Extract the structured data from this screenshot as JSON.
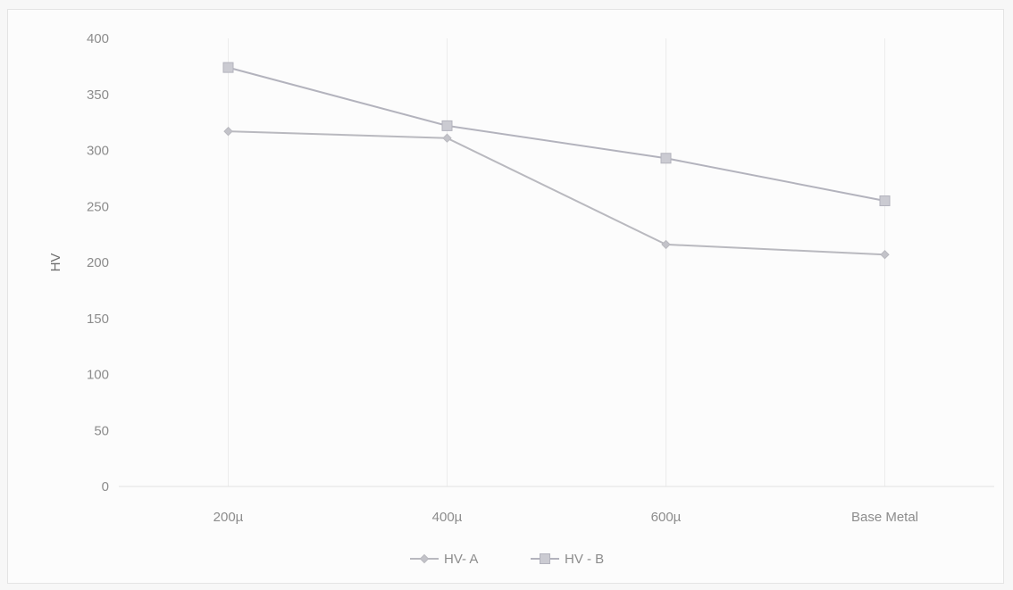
{
  "chart_data": {
    "type": "line",
    "title": "",
    "xlabel": "",
    "ylabel": "HV",
    "categories": [
      "200µ",
      "400µ",
      "600µ",
      "Base Metal"
    ],
    "ylim": [
      0,
      400
    ],
    "yticks": [
      0,
      50,
      100,
      150,
      200,
      250,
      300,
      350,
      400
    ],
    "grid": "vertical",
    "legend": "bottom",
    "series": [
      {
        "name": "HV- A",
        "values": [
          317,
          311,
          216,
          207
        ],
        "marker": "diamond",
        "color": "#b9b9bf"
      },
      {
        "name": "HV - B",
        "values": [
          374,
          322,
          293,
          255
        ],
        "marker": "square",
        "color": "#b3b3bd"
      }
    ]
  }
}
